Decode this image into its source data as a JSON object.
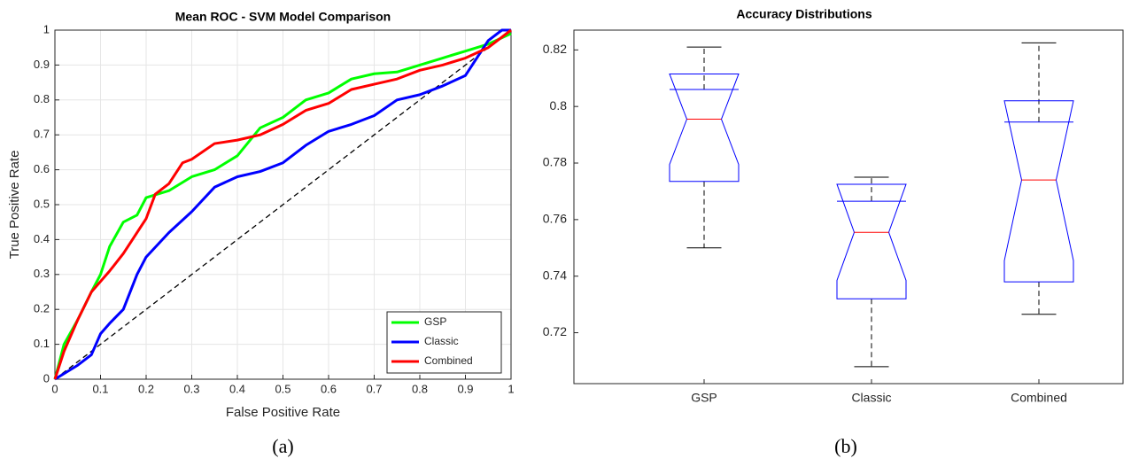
{
  "chart_data": [
    {
      "type": "line",
      "title": "Mean ROC - SVM Model Comparison",
      "xlabel": "False Positive Rate",
      "ylabel": "True Positive Rate",
      "caption": "(a)",
      "xlim": [
        0,
        1
      ],
      "ylim": [
        0,
        1
      ],
      "xticks": [
        0,
        0.1,
        0.2,
        0.3,
        0.4,
        0.5,
        0.6,
        0.7,
        0.8,
        0.9,
        1
      ],
      "yticks": [
        0,
        0.1,
        0.2,
        0.3,
        0.4,
        0.5,
        0.6,
        0.7,
        0.8,
        0.9,
        1
      ],
      "grid": true,
      "legend": "lower right",
      "reference_line": {
        "x": [
          0,
          1
        ],
        "values": [
          0,
          1
        ],
        "color": "#000000"
      },
      "series": [
        {
          "name": "GSP",
          "color": "#00ff00",
          "x": [
            0,
            0.02,
            0.05,
            0.08,
            0.1,
            0.12,
            0.15,
            0.18,
            0.2,
            0.25,
            0.3,
            0.35,
            0.4,
            0.45,
            0.5,
            0.55,
            0.6,
            0.65,
            0.7,
            0.75,
            0.8,
            0.85,
            0.9,
            0.95,
            1
          ],
          "values": [
            0,
            0.1,
            0.17,
            0.25,
            0.3,
            0.38,
            0.45,
            0.47,
            0.52,
            0.54,
            0.58,
            0.6,
            0.64,
            0.72,
            0.75,
            0.8,
            0.82,
            0.86,
            0.875,
            0.88,
            0.9,
            0.92,
            0.94,
            0.96,
            0.99
          ]
        },
        {
          "name": "Classic",
          "color": "#0000ff",
          "x": [
            0,
            0.05,
            0.08,
            0.1,
            0.12,
            0.15,
            0.18,
            0.2,
            0.25,
            0.3,
            0.35,
            0.4,
            0.45,
            0.5,
            0.55,
            0.6,
            0.65,
            0.7,
            0.75,
            0.8,
            0.85,
            0.9,
            0.95,
            0.98,
            1
          ],
          "values": [
            0,
            0.04,
            0.07,
            0.13,
            0.16,
            0.2,
            0.3,
            0.35,
            0.42,
            0.48,
            0.55,
            0.58,
            0.595,
            0.62,
            0.67,
            0.71,
            0.73,
            0.755,
            0.8,
            0.815,
            0.84,
            0.87,
            0.97,
            1,
            1
          ]
        },
        {
          "name": "Combined",
          "color": "#ff0000",
          "x": [
            0,
            0.02,
            0.05,
            0.08,
            0.1,
            0.12,
            0.15,
            0.18,
            0.2,
            0.22,
            0.25,
            0.28,
            0.3,
            0.35,
            0.4,
            0.45,
            0.5,
            0.55,
            0.6,
            0.65,
            0.7,
            0.75,
            0.8,
            0.85,
            0.9,
            0.95,
            1
          ],
          "values": [
            0,
            0.08,
            0.17,
            0.25,
            0.28,
            0.31,
            0.36,
            0.42,
            0.46,
            0.53,
            0.56,
            0.62,
            0.63,
            0.675,
            0.685,
            0.7,
            0.73,
            0.77,
            0.79,
            0.83,
            0.845,
            0.86,
            0.885,
            0.9,
            0.92,
            0.95,
            1
          ]
        }
      ]
    },
    {
      "type": "box",
      "title": "Accuracy Distributions",
      "caption": "(b)",
      "categories": [
        "GSP",
        "Classic",
        "Combined"
      ],
      "ylim": [
        0.702,
        0.827
      ],
      "yticks": [
        0.72,
        0.74,
        0.76,
        0.78,
        0.8,
        0.82
      ],
      "box_color": "#0000ff",
      "median_color": "#ff0000",
      "whisker_color": "#000000",
      "boxes": [
        {
          "whisker_low": 0.75,
          "q1": 0.7735,
          "median": 0.7955,
          "q3": 0.806,
          "whisker_high": 0.821,
          "notch_low": 0.7795,
          "notch_high": 0.8115
        },
        {
          "whisker_low": 0.708,
          "q1": 0.732,
          "median": 0.7555,
          "q3": 0.7665,
          "whisker_high": 0.775,
          "notch_low": 0.7385,
          "notch_high": 0.7725
        },
        {
          "whisker_low": 0.7265,
          "q1": 0.738,
          "median": 0.774,
          "q3": 0.7945,
          "whisker_high": 0.8225,
          "notch_low": 0.7455,
          "notch_high": 0.802
        }
      ]
    }
  ]
}
